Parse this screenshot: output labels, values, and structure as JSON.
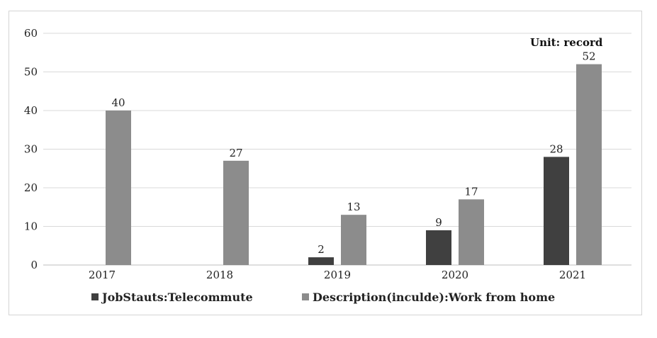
{
  "chart_data": {
    "type": "bar",
    "categories": [
      "2017",
      "2018",
      "2019",
      "2020",
      "2021"
    ],
    "series": [
      {
        "name": "JobStauts:Telecommute",
        "values": [
          0,
          0,
          2,
          9,
          28
        ],
        "labels": [
          "",
          "",
          "2",
          "9",
          "28"
        ],
        "color": "#404040"
      },
      {
        "name": "Description(inculde):Work from home",
        "values": [
          40,
          27,
          13,
          17,
          52
        ],
        "labels": [
          "40",
          "27",
          "13",
          "17",
          "52"
        ],
        "color": "#8c8c8c"
      }
    ],
    "yticks": [
      "0",
      "10",
      "20",
      "30",
      "40",
      "50",
      "60"
    ],
    "ylim": [
      0,
      60
    ],
    "grid": true,
    "legend": "bottom",
    "unit_label": "Unit:  record",
    "gridline_color": "#d9d9d9"
  }
}
